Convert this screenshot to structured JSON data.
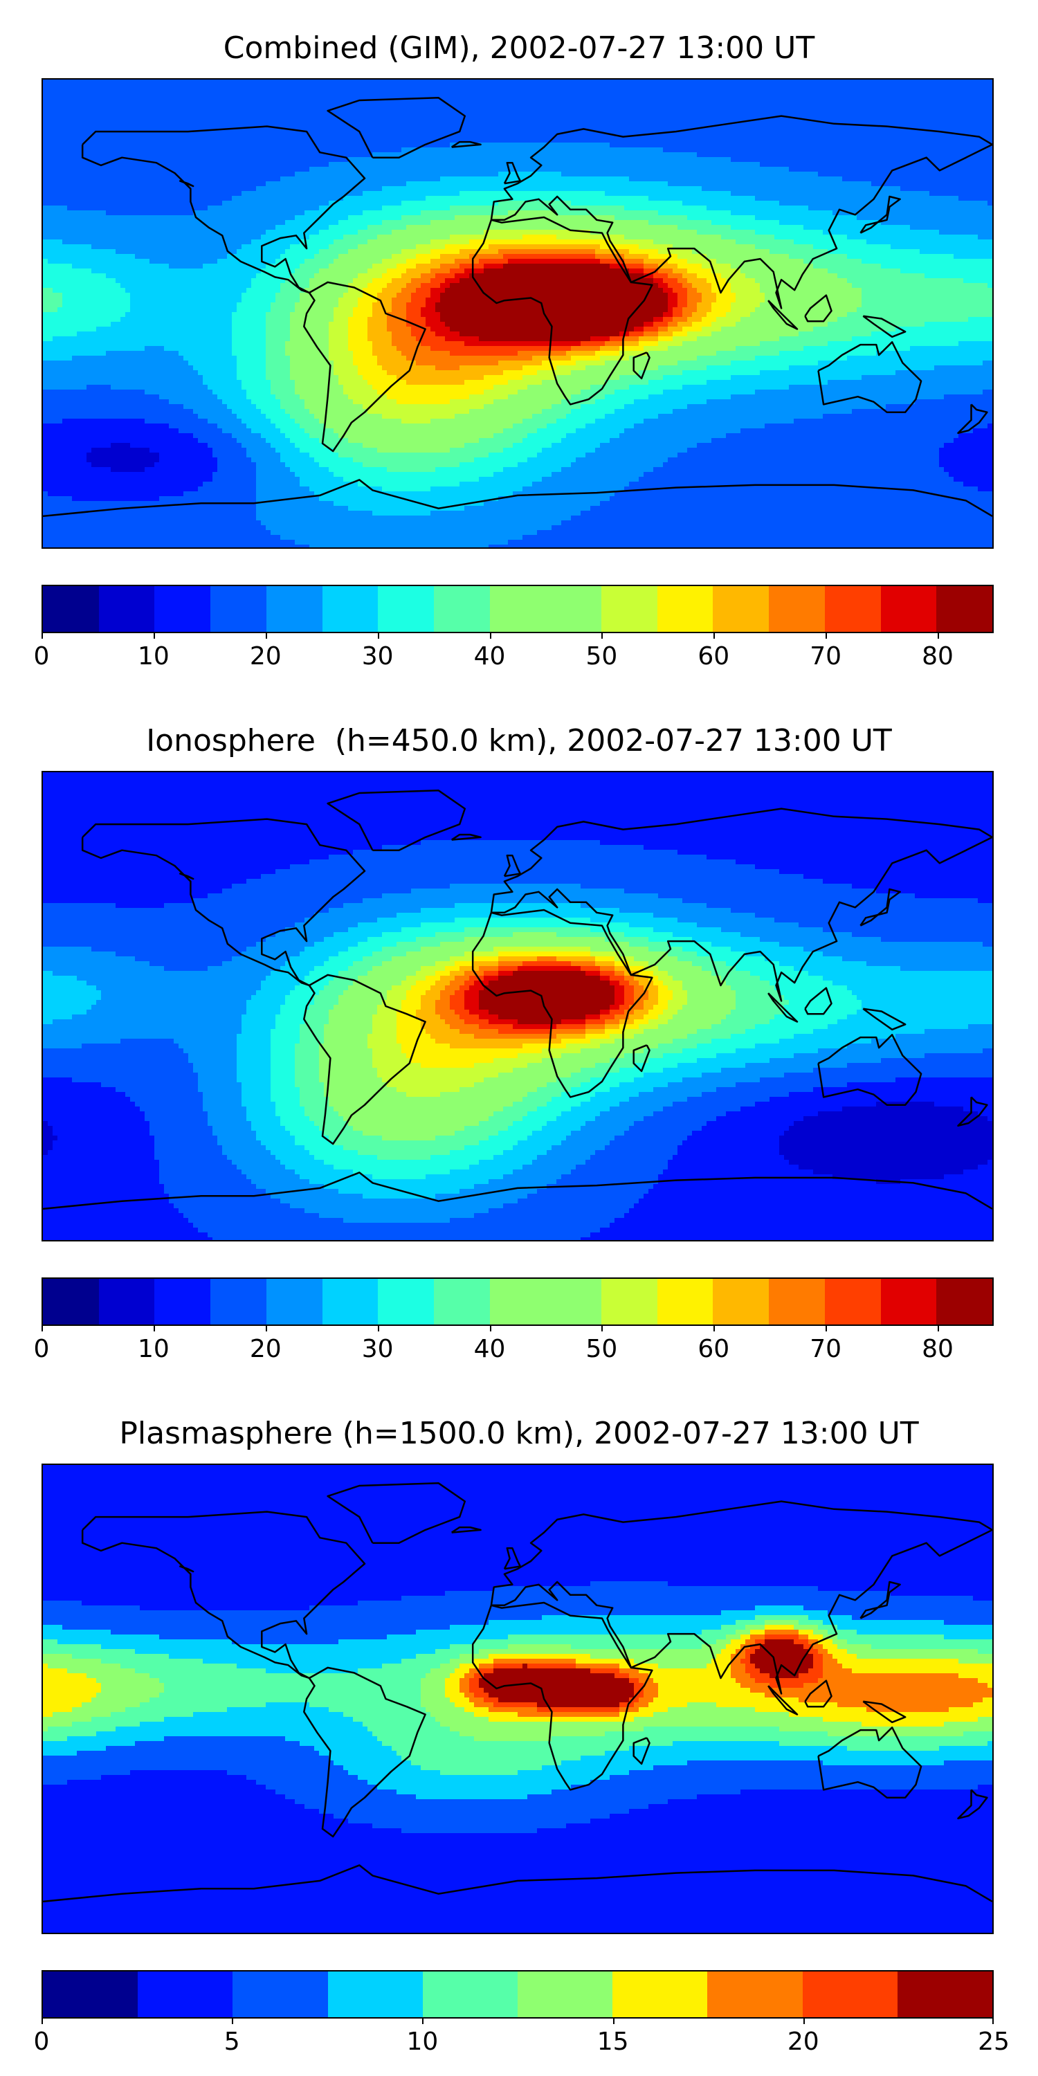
{
  "panels": [
    {
      "title": "Combined (GIM), 2002-07-27 13:00 UT",
      "colorbar": {
        "vmin": 0,
        "vmax": 85,
        "step": 5,
        "ticks": [
          "0",
          "10",
          "20",
          "30",
          "40",
          "50",
          "60",
          "70",
          "80"
        ],
        "tick_values": [
          0,
          10,
          20,
          30,
          40,
          50,
          60,
          70,
          80
        ]
      },
      "field": {
        "background": 18,
        "blobs": [
          {
            "lon": 20,
            "lat": 4,
            "peak": 80,
            "wlon": 24,
            "wlat": 9
          },
          {
            "lon": 10,
            "lat": 10,
            "peak": 62,
            "wlon": 55,
            "wlat": 22
          },
          {
            "lon": -30,
            "lat": -15,
            "peak": 42,
            "wlon": 45,
            "wlat": 28
          },
          {
            "lon": -50,
            "lat": -40,
            "peak": 34,
            "wlon": 40,
            "wlat": 25
          },
          {
            "lon": 110,
            "lat": 5,
            "peak": 36,
            "wlon": 55,
            "wlat": 20
          },
          {
            "lon": -170,
            "lat": 5,
            "peak": 28,
            "wlon": 30,
            "wlat": 15
          },
          {
            "lon": -140,
            "lat": -55,
            "peak": 8,
            "wlon": 40,
            "wlat": 12
          }
        ]
      }
    },
    {
      "title": "Ionosphere  (h=450.0 km), 2002-07-27 13:00 UT",
      "colorbar": {
        "vmin": 0,
        "vmax": 85,
        "step": 5,
        "ticks": [
          "0",
          "10",
          "20",
          "30",
          "40",
          "50",
          "60",
          "70",
          "80"
        ],
        "tick_values": [
          0,
          10,
          20,
          30,
          40,
          50,
          60,
          70,
          80
        ]
      },
      "field": {
        "background": 14,
        "blobs": [
          {
            "lon": 15,
            "lat": 5,
            "peak": 56,
            "wlon": 25,
            "wlat": 10
          },
          {
            "lon": 5,
            "lat": 5,
            "peak": 46,
            "wlon": 55,
            "wlat": 22
          },
          {
            "lon": -30,
            "lat": -20,
            "peak": 34,
            "wlon": 45,
            "wlat": 28
          },
          {
            "lon": -50,
            "lat": -45,
            "peak": 30,
            "wlon": 40,
            "wlat": 25
          },
          {
            "lon": 105,
            "lat": 0,
            "peak": 28,
            "wlon": 55,
            "wlat": 18
          },
          {
            "lon": -170,
            "lat": 5,
            "peak": 22,
            "wlon": 30,
            "wlat": 15
          },
          {
            "lon": 140,
            "lat": -50,
            "peak": 6,
            "wlon": 40,
            "wlat": 15
          }
        ]
      }
    },
    {
      "title": "Plasmasphere (h=1500.0 km), 2002-07-27 13:00 UT",
      "colorbar": {
        "vmin": 0,
        "vmax": 25,
        "step": 2.5,
        "ticks": [
          "0",
          "5",
          "10",
          "15",
          "20",
          "25"
        ],
        "tick_values": [
          0,
          5,
          10,
          15,
          20,
          25
        ]
      },
      "field": {
        "background": 4,
        "blobs": [
          {
            "lon": 0,
            "lat": 6,
            "peak": 18.5,
            "wlon": 15,
            "wlat": 7
          },
          {
            "lon": 30,
            "lat": 3,
            "peak": 17.5,
            "wlon": 12,
            "wlat": 6
          },
          {
            "lon": 100,
            "lat": 18,
            "peak": 18.5,
            "wlon": 12,
            "wlat": 8
          },
          {
            "lon": 40,
            "lat": 5,
            "peak": 15,
            "wlon": 70,
            "wlat": 18
          },
          {
            "lon": -150,
            "lat": 5,
            "peak": 11,
            "wlon": 60,
            "wlat": 14
          },
          {
            "lon": 150,
            "lat": 0,
            "peak": 12,
            "wlon": 40,
            "wlat": 16
          },
          {
            "lon": -20,
            "lat": -25,
            "peak": 9,
            "wlon": 40,
            "wlat": 15
          }
        ]
      }
    }
  ],
  "colormap": [
    "#00008f",
    "#0000d0",
    "#0012ff",
    "#0055ff",
    "#0092ff",
    "#00d2ff",
    "#1cffe3",
    "#56ffa9",
    "#8fff70",
    "#c9ff36",
    "#fff200",
    "#ffb800",
    "#ff7b00",
    "#ff3f00",
    "#e10000",
    "#9c0000"
  ]
}
